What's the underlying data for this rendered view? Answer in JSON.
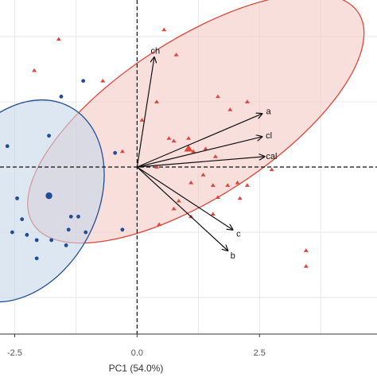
{
  "chart_data": {
    "type": "scatter",
    "title": "",
    "xlabel": "PC1 (54.0%)",
    "ylabel": "",
    "xlim": [
      -2.8,
      4.9
    ],
    "ylim": [
      -3.2,
      3.2
    ],
    "xticks": [
      {
        "value": -2.5,
        "label": "-2.5"
      },
      {
        "value": 0,
        "label": "0.0"
      },
      {
        "value": 2.5,
        "label": "2.5"
      }
    ],
    "grid": true,
    "colors": {
      "red": "#e0453a",
      "red_fill": "#f4c9c4",
      "blue": "#1f4e96",
      "blue_fill": "#c7d7ea",
      "arrow": "#111111",
      "grid": "#e3e3e3",
      "axis": "#333333",
      "tick_text": "#555555"
    },
    "ellipses": [
      {
        "group": "red",
        "cx": 1.2,
        "cy": 0.93,
        "rx": 3.96,
        "ry": 1.51,
        "angle_deg": -33
      },
      {
        "group": "blue",
        "cx": -2.4,
        "cy": -0.65,
        "rx": 2.18,
        "ry": 1.48,
        "angle_deg": -62
      }
    ],
    "series": [
      {
        "group": "red",
        "marker": "triangle",
        "points": [
          [
            -1.6,
            2.45
          ],
          [
            0.55,
            2.63
          ],
          [
            0.8,
            2.15
          ],
          [
            -2.1,
            1.85
          ],
          [
            -0.7,
            1.65
          ],
          [
            1.65,
            1.35
          ],
          [
            2.25,
            1.25
          ],
          [
            0.4,
            1.25
          ],
          [
            1.9,
            1.1
          ],
          [
            0.1,
            0.9
          ],
          [
            -0.3,
            0.3
          ],
          [
            0.65,
            0.55
          ],
          [
            0.75,
            0.5
          ],
          [
            1.05,
            0.55
          ],
          [
            1.15,
            0.3
          ],
          [
            1.4,
            0.35
          ],
          [
            1.6,
            0.2
          ],
          [
            0.4,
            0.0
          ],
          [
            1.35,
            -0.15
          ],
          [
            1.1,
            -0.3
          ],
          [
            1.55,
            -0.35
          ],
          [
            1.85,
            -0.35
          ],
          [
            2.05,
            -0.3
          ],
          [
            2.25,
            -0.35
          ],
          [
            2.75,
            -0.05
          ],
          [
            1.65,
            -0.58
          ],
          [
            2.1,
            -0.6
          ],
          [
            0.85,
            -0.65
          ],
          [
            0.75,
            -0.8
          ],
          [
            1.1,
            -0.95
          ],
          [
            1.55,
            -0.9
          ],
          [
            3.45,
            -1.6
          ],
          [
            3.45,
            -1.9
          ],
          [
            0.45,
            -1.1
          ]
        ],
        "large_points": [
          [
            1.05,
            0.35
          ]
        ]
      },
      {
        "group": "blue",
        "marker": "circle",
        "points": [
          [
            -1.55,
            1.35
          ],
          [
            -1.1,
            1.65
          ],
          [
            -1.8,
            0.6
          ],
          [
            -2.65,
            0.4
          ],
          [
            -0.45,
            0.27
          ],
          [
            -2.45,
            -0.6
          ],
          [
            -1.35,
            -0.95
          ],
          [
            -2.35,
            -1.0
          ],
          [
            -1.2,
            -0.95
          ],
          [
            -1.4,
            -1.2
          ],
          [
            -1.05,
            -1.25
          ],
          [
            -2.55,
            -1.25
          ],
          [
            -2.25,
            -1.3
          ],
          [
            -2.05,
            -1.4
          ],
          [
            -0.3,
            -1.2
          ],
          [
            -1.75,
            -1.4
          ],
          [
            -2.05,
            -1.75
          ],
          [
            -1.45,
            -1.5
          ]
        ],
        "large_points": [
          [
            -1.8,
            -0.55
          ]
        ]
      }
    ],
    "loadings": [
      {
        "label": "ch",
        "x": 0.35,
        "y": 2.1
      },
      {
        "label": "a",
        "x": 2.55,
        "y": 1.02
      },
      {
        "label": "cl",
        "x": 2.55,
        "y": 0.58
      },
      {
        "label": "cal",
        "x": 2.6,
        "y": 0.2
      },
      {
        "label": "c",
        "x": 1.95,
        "y": -1.2
      },
      {
        "label": "b",
        "x": 1.85,
        "y": -1.6
      }
    ]
  }
}
